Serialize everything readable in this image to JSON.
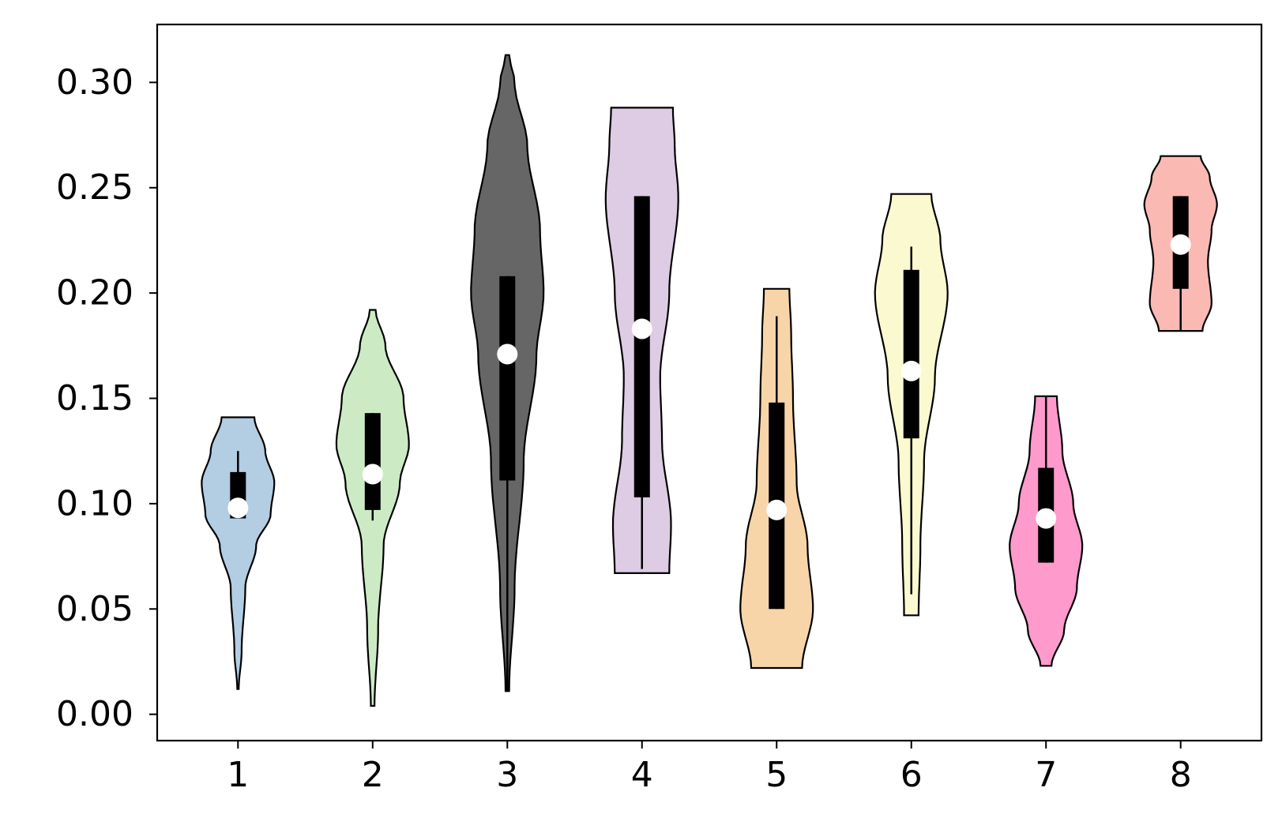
{
  "chart_data": {
    "type": "violin",
    "title": "",
    "xlabel": "",
    "ylabel": "",
    "ylim": [
      -0.0125,
      0.3275
    ],
    "xlim": [
      0.4,
      8.6
    ],
    "y_ticks": [
      "0.00",
      "0.05",
      "0.10",
      "0.15",
      "0.20",
      "0.25",
      "0.30"
    ],
    "y_tick_values": [
      0.0,
      0.05,
      0.1,
      0.15,
      0.2,
      0.25,
      0.3
    ],
    "categories": [
      "1",
      "2",
      "3",
      "4",
      "5",
      "6",
      "7",
      "8"
    ],
    "grid": false,
    "legend": "none",
    "outline_color": "#000000",
    "median_color": "#ffffff",
    "violins": [
      {
        "label": "1",
        "color": "#b3cde3",
        "min": 0.012,
        "max": 0.141,
        "q1": 0.093,
        "q3": 0.115,
        "median": 0.098,
        "whisker_low": 0.093,
        "whisker_high": 0.125,
        "profile": [
          [
            0.012,
            0.02
          ],
          [
            0.03,
            0.1
          ],
          [
            0.06,
            0.2
          ],
          [
            0.08,
            0.5
          ],
          [
            0.095,
            0.9
          ],
          [
            0.11,
            1.0
          ],
          [
            0.125,
            0.75
          ],
          [
            0.141,
            0.45
          ]
        ]
      },
      {
        "label": "2",
        "color": "#ccebc5",
        "min": 0.004,
        "max": 0.192,
        "q1": 0.097,
        "q3": 0.143,
        "median": 0.114,
        "whisker_low": 0.092,
        "whisker_high": 0.143,
        "profile": [
          [
            0.004,
            0.05
          ],
          [
            0.04,
            0.15
          ],
          [
            0.08,
            0.3
          ],
          [
            0.11,
            0.75
          ],
          [
            0.128,
            1.0
          ],
          [
            0.15,
            0.85
          ],
          [
            0.175,
            0.35
          ],
          [
            0.192,
            0.08
          ]
        ]
      },
      {
        "label": "3",
        "color": "#666666",
        "min": 0.011,
        "max": 0.313,
        "q1": 0.111,
        "q3": 0.208,
        "median": 0.171,
        "whisker_low": 0.011,
        "whisker_high": 0.208,
        "profile": [
          [
            0.011,
            0.05
          ],
          [
            0.06,
            0.2
          ],
          [
            0.12,
            0.45
          ],
          [
            0.17,
            0.8
          ],
          [
            0.2,
            1.0
          ],
          [
            0.23,
            0.9
          ],
          [
            0.27,
            0.55
          ],
          [
            0.3,
            0.2
          ],
          [
            0.313,
            0.05
          ]
        ]
      },
      {
        "label": "4",
        "color": "#decbe4",
        "min": 0.067,
        "max": 0.288,
        "q1": 0.103,
        "q3": 0.246,
        "median": 0.183,
        "whisker_low": 0.069,
        "whisker_high": 0.246,
        "profile": [
          [
            0.067,
            0.75
          ],
          [
            0.09,
            0.8
          ],
          [
            0.13,
            0.55
          ],
          [
            0.16,
            0.5
          ],
          [
            0.2,
            0.75
          ],
          [
            0.245,
            1.0
          ],
          [
            0.27,
            0.9
          ],
          [
            0.288,
            0.85
          ]
        ]
      },
      {
        "label": "5",
        "color": "#f8d5a8",
        "min": 0.022,
        "max": 0.202,
        "q1": 0.05,
        "q3": 0.148,
        "median": 0.097,
        "whisker_low": 0.05,
        "whisker_high": 0.189,
        "profile": [
          [
            0.022,
            0.7
          ],
          [
            0.05,
            1.0
          ],
          [
            0.08,
            0.85
          ],
          [
            0.11,
            0.55
          ],
          [
            0.15,
            0.45
          ],
          [
            0.18,
            0.4
          ],
          [
            0.202,
            0.35
          ]
        ]
      },
      {
        "label": "6",
        "color": "#fbf9cf",
        "min": 0.047,
        "max": 0.247,
        "q1": 0.131,
        "q3": 0.211,
        "median": 0.163,
        "whisker_low": 0.057,
        "whisker_high": 0.222,
        "profile": [
          [
            0.047,
            0.2
          ],
          [
            0.08,
            0.25
          ],
          [
            0.12,
            0.35
          ],
          [
            0.16,
            0.65
          ],
          [
            0.2,
            1.0
          ],
          [
            0.225,
            0.8
          ],
          [
            0.247,
            0.55
          ]
        ]
      },
      {
        "label": "7",
        "color": "#fe9acc",
        "min": 0.023,
        "max": 0.151,
        "q1": 0.072,
        "q3": 0.117,
        "median": 0.093,
        "whisker_low": 0.072,
        "whisker_high": 0.151,
        "profile": [
          [
            0.023,
            0.15
          ],
          [
            0.04,
            0.5
          ],
          [
            0.06,
            0.85
          ],
          [
            0.08,
            1.0
          ],
          [
            0.1,
            0.75
          ],
          [
            0.125,
            0.45
          ],
          [
            0.151,
            0.3
          ]
        ]
      },
      {
        "label": "8",
        "color": "#fbb9b4",
        "min": 0.182,
        "max": 0.265,
        "q1": 0.202,
        "q3": 0.246,
        "median": 0.223,
        "whisker_low": 0.182,
        "whisker_high": 0.246,
        "profile": [
          [
            0.182,
            0.6
          ],
          [
            0.195,
            0.85
          ],
          [
            0.215,
            0.75
          ],
          [
            0.23,
            0.85
          ],
          [
            0.242,
            1.0
          ],
          [
            0.255,
            0.8
          ],
          [
            0.265,
            0.55
          ]
        ]
      }
    ]
  }
}
